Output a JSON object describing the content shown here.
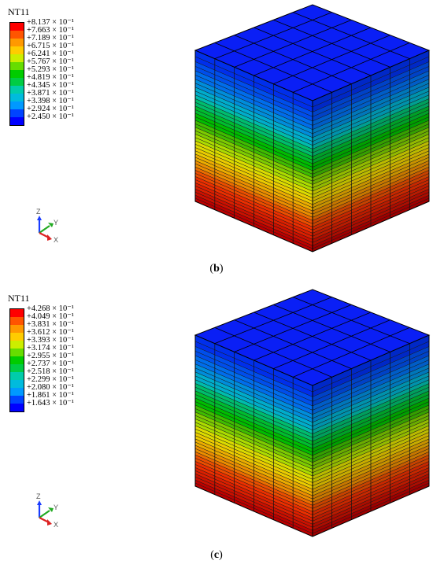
{
  "panels": [
    {
      "id": "b",
      "legend_title": "NT11",
      "legend_values": [
        "+8.137 × 10⁻¹",
        "+7.663 × 10⁻¹",
        "+7.189 × 10⁻¹",
        "+6.715 × 10⁻¹",
        "+6.241 × 10⁻¹",
        "+5.767 × 10⁻¹",
        "+5.293 × 10⁻¹",
        "+4.819 × 10⁻¹",
        "+4.345 × 10⁻¹",
        "+3.871 × 10⁻¹",
        "+3.398 × 10⁻¹",
        "+2.924 × 10⁻¹",
        "+2.450 × 10⁻¹"
      ],
      "caption_open": "(",
      "caption_letter": "b",
      "caption_close": ")"
    },
    {
      "id": "c",
      "legend_title": "NT11",
      "legend_values": [
        "+4.268 × 10⁻¹",
        "+4.049 × 10⁻¹",
        "+3.831 × 10⁻¹",
        "+3.612 × 10⁻¹",
        "+3.393 × 10⁻¹",
        "+3.174 × 10⁻¹",
        "+2.955 × 10⁻¹",
        "+2.737 × 10⁻¹",
        "+2.518 × 10⁻¹",
        "+2.299 × 10⁻¹",
        "+2.080 × 10⁻¹",
        "+1.861 × 10⁻¹",
        "+1.643 × 10⁻¹"
      ],
      "caption_open": "(",
      "caption_letter": "c",
      "caption_close": ")"
    }
  ],
  "legend_colors": [
    "#ff0000",
    "#ff5500",
    "#ff9900",
    "#ffcc00",
    "#ccee00",
    "#66dd00",
    "#00cc00",
    "#00cc44",
    "#00ccaa",
    "#00bbdd",
    "#0099ff",
    "#0044ff",
    "#0000ff"
  ],
  "triad": {
    "z": "Z",
    "y": "Y",
    "x": "X"
  },
  "triad_colors": {
    "z": "#1a3cff",
    "y": "#22aa22",
    "x": "#dd2222"
  }
}
